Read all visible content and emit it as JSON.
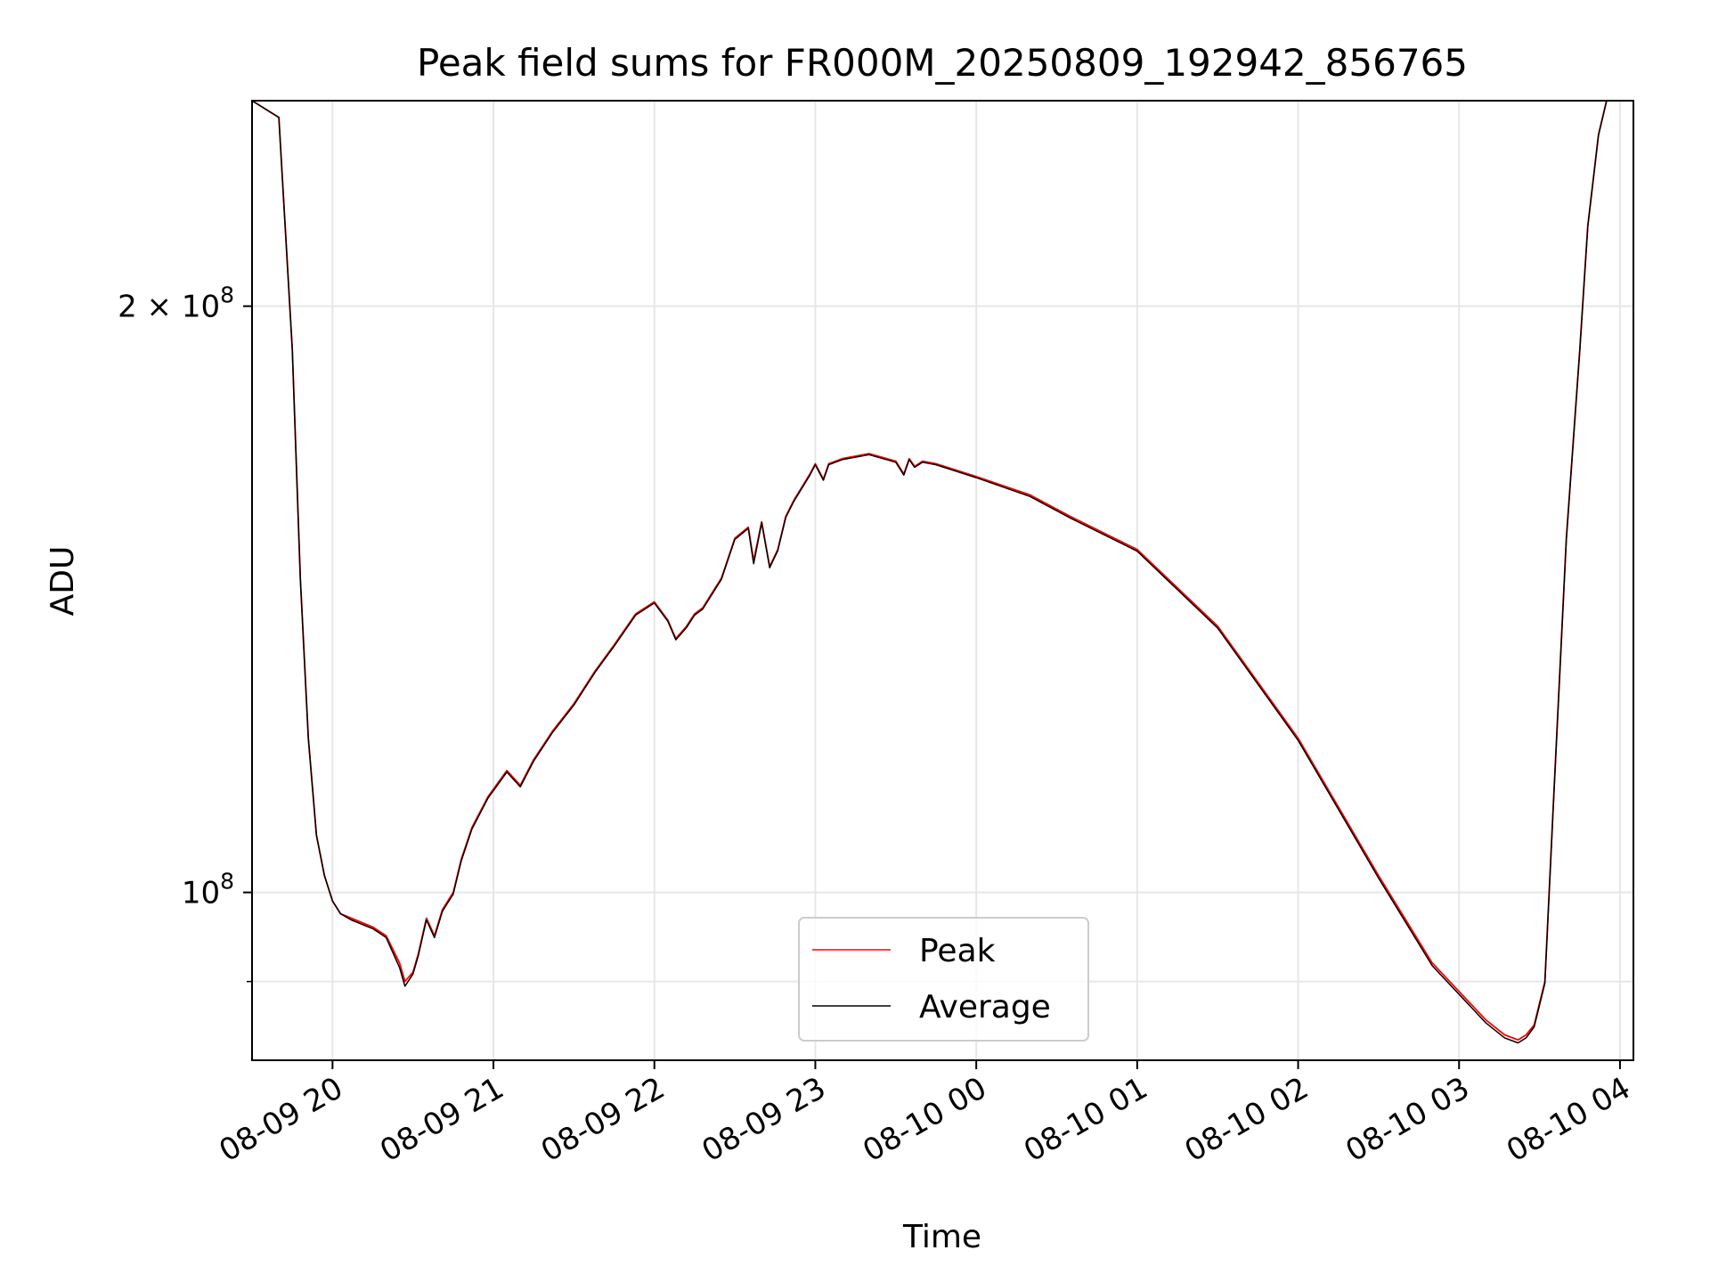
{
  "chart_data": {
    "type": "line",
    "title": "Peak field sums for FR000M_20250809_192942_856765",
    "xlabel": "Time",
    "ylabel": "ADU",
    "yscale": "log",
    "grid": true,
    "legend_position": "bottom-center",
    "x_tick_labels": [
      "08-09 20",
      "08-09 21",
      "08-09 22",
      "08-09 23",
      "08-10 00",
      "08-10 01",
      "08-10 02",
      "08-10 03",
      "08-10 04"
    ],
    "xlim": [
      "2025-08-09 19:30",
      "2025-08-10 04:05"
    ],
    "ylim": [
      82000000,
      255000000
    ],
    "y_ticks": [
      {
        "value": 100000000,
        "mantissa": "",
        "exponent": "8"
      },
      {
        "value": 200000000,
        "mantissa": "2",
        "exponent": "8"
      }
    ],
    "y_minor_ticks": [
      90000000
    ],
    "series": [
      {
        "name": "Peak",
        "color": "#ff0000",
        "x": [
          "2025-08-09 19:30",
          "2025-08-09 19:40",
          "2025-08-09 19:45",
          "2025-08-09 19:48",
          "2025-08-09 19:51",
          "2025-08-09 19:54",
          "2025-08-09 19:57",
          "2025-08-09 19:59",
          "2025-08-09 20:00",
          "2025-08-09 20:03",
          "2025-08-09 20:07",
          "2025-08-09 20:15",
          "2025-08-09 20:20",
          "2025-08-09 20:25",
          "2025-08-09 20:27",
          "2025-08-09 20:30",
          "2025-08-09 20:32",
          "2025-08-09 20:35",
          "2025-08-09 20:38",
          "2025-08-09 20:41",
          "2025-08-09 20:45",
          "2025-08-09 20:48",
          "2025-08-09 20:52",
          "2025-08-09 20:58",
          "2025-08-09 21:05",
          "2025-08-09 21:10",
          "2025-08-09 21:15",
          "2025-08-09 21:22",
          "2025-08-09 21:30",
          "2025-08-09 21:38",
          "2025-08-09 21:45",
          "2025-08-09 21:53",
          "2025-08-09 22:00",
          "2025-08-09 22:05",
          "2025-08-09 22:08",
          "2025-08-09 22:12",
          "2025-08-09 22:15",
          "2025-08-09 22:18",
          "2025-08-09 22:25",
          "2025-08-09 22:30",
          "2025-08-09 22:35",
          "2025-08-09 22:37",
          "2025-08-09 22:40",
          "2025-08-09 22:43",
          "2025-08-09 22:46",
          "2025-08-09 22:49",
          "2025-08-09 22:52",
          "2025-08-09 22:58",
          "2025-08-09 23:00",
          "2025-08-09 23:03",
          "2025-08-09 23:05",
          "2025-08-09 23:10",
          "2025-08-09 23:20",
          "2025-08-09 23:30",
          "2025-08-09 23:33",
          "2025-08-09 23:35",
          "2025-08-09 23:37",
          "2025-08-09 23:40",
          "2025-08-09 23:45",
          "2025-08-10 00:00",
          "2025-08-10 00:20",
          "2025-08-10 00:35",
          "2025-08-10 01:00",
          "2025-08-10 01:30",
          "2025-08-10 02:00",
          "2025-08-10 02:30",
          "2025-08-10 02:50",
          "2025-08-10 03:10",
          "2025-08-10 03:17",
          "2025-08-10 03:22",
          "2025-08-10 03:25",
          "2025-08-10 03:28",
          "2025-08-10 03:32",
          "2025-08-10 03:35",
          "2025-08-10 03:40",
          "2025-08-10 03:45",
          "2025-08-10 03:48",
          "2025-08-10 03:52",
          "2025-08-10 03:55",
          "2025-08-10 04:00",
          "2025-08-10 04:05"
        ],
        "y": [
          255000000,
          250000000,
          190000000,
          145000000,
          120000000,
          107000000,
          102000000,
          100000000,
          99000000,
          97500000,
          97000000,
          96000000,
          95000000,
          92000000,
          90000000,
          91000000,
          93000000,
          97000000,
          95000000,
          98000000,
          100000000,
          104000000,
          108000000,
          112000000,
          115500000,
          113500000,
          117000000,
          121000000,
          125000000,
          130000000,
          134000000,
          139000000,
          141000000,
          138000000,
          135000000,
          137000000,
          139000000,
          140000000,
          145000000,
          152000000,
          154000000,
          148000000,
          155000000,
          147000000,
          150000000,
          156000000,
          159000000,
          164000000,
          166000000,
          163000000,
          166000000,
          167000000,
          168000000,
          166500000,
          164000000,
          167000000,
          165500000,
          166500000,
          166000000,
          163500000,
          160000000,
          156000000,
          150000000,
          137000000,
          120000000,
          102000000,
          92000000,
          86000000,
          84500000,
          84000000,
          84500000,
          85500000,
          90000000,
          110000000,
          152000000,
          190000000,
          220000000,
          245000000,
          255000000,
          255000000,
          255000000
        ]
      },
      {
        "name": "Average",
        "color": "#000000",
        "x": [
          "2025-08-09 19:30",
          "2025-08-09 19:40",
          "2025-08-09 19:45",
          "2025-08-09 19:48",
          "2025-08-09 19:51",
          "2025-08-09 19:54",
          "2025-08-09 19:57",
          "2025-08-09 19:59",
          "2025-08-09 20:00",
          "2025-08-09 20:03",
          "2025-08-09 20:07",
          "2025-08-09 20:15",
          "2025-08-09 20:20",
          "2025-08-09 20:25",
          "2025-08-09 20:27",
          "2025-08-09 20:30",
          "2025-08-09 20:32",
          "2025-08-09 20:35",
          "2025-08-09 20:38",
          "2025-08-09 20:41",
          "2025-08-09 20:45",
          "2025-08-09 20:48",
          "2025-08-09 20:52",
          "2025-08-09 20:58",
          "2025-08-09 21:05",
          "2025-08-09 21:10",
          "2025-08-09 21:15",
          "2025-08-09 21:22",
          "2025-08-09 21:30",
          "2025-08-09 21:38",
          "2025-08-09 21:45",
          "2025-08-09 21:53",
          "2025-08-09 22:00",
          "2025-08-09 22:05",
          "2025-08-09 22:08",
          "2025-08-09 22:12",
          "2025-08-09 22:15",
          "2025-08-09 22:18",
          "2025-08-09 22:25",
          "2025-08-09 22:30",
          "2025-08-09 22:35",
          "2025-08-09 22:37",
          "2025-08-09 22:40",
          "2025-08-09 22:43",
          "2025-08-09 22:46",
          "2025-08-09 22:49",
          "2025-08-09 22:52",
          "2025-08-09 22:58",
          "2025-08-09 23:00",
          "2025-08-09 23:03",
          "2025-08-09 23:05",
          "2025-08-09 23:10",
          "2025-08-09 23:20",
          "2025-08-09 23:30",
          "2025-08-09 23:33",
          "2025-08-09 23:35",
          "2025-08-09 23:37",
          "2025-08-09 23:40",
          "2025-08-09 23:45",
          "2025-08-10 00:00",
          "2025-08-10 00:20",
          "2025-08-10 00:35",
          "2025-08-10 01:00",
          "2025-08-10 01:30",
          "2025-08-10 02:00",
          "2025-08-10 02:30",
          "2025-08-10 02:50",
          "2025-08-10 03:10",
          "2025-08-10 03:17",
          "2025-08-10 03:22",
          "2025-08-10 03:25",
          "2025-08-10 03:28",
          "2025-08-10 03:32",
          "2025-08-10 03:35",
          "2025-08-10 03:40",
          "2025-08-10 03:45",
          "2025-08-10 03:48",
          "2025-08-10 03:52",
          "2025-08-10 03:55",
          "2025-08-10 04:00",
          "2025-08-10 04:05"
        ],
        "y": [
          255000000,
          250000000,
          190000000,
          145000000,
          120000000,
          107000000,
          102000000,
          100000000,
          99000000,
          97500000,
          96800000,
          95800000,
          94800000,
          91500000,
          89500000,
          90800000,
          92800000,
          96800000,
          94800000,
          97800000,
          99800000,
          103800000,
          107800000,
          111800000,
          115300000,
          113300000,
          116800000,
          120800000,
          124800000,
          129800000,
          133800000,
          138800000,
          140800000,
          137800000,
          134800000,
          136800000,
          138800000,
          139800000,
          144800000,
          151800000,
          153800000,
          147500000,
          154800000,
          146800000,
          149800000,
          155800000,
          158800000,
          163800000,
          165800000,
          162800000,
          165800000,
          166800000,
          167800000,
          166300000,
          163800000,
          166800000,
          165300000,
          166300000,
          165800000,
          163300000,
          159700000,
          155700000,
          149700000,
          136700000,
          119700000,
          101700000,
          91700000,
          85700000,
          84200000,
          83700000,
          84200000,
          85300000,
          89800000,
          109800000,
          151800000,
          189800000,
          219800000,
          244800000,
          255000000,
          255000000,
          255000000
        ]
      }
    ]
  }
}
